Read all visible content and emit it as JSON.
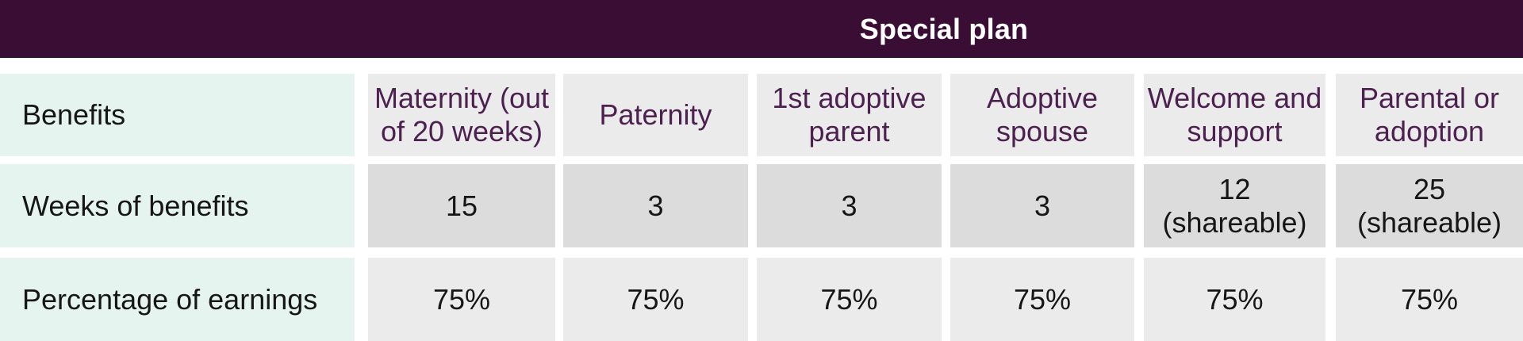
{
  "header": {
    "title": "Special plan"
  },
  "table": {
    "benefits_label": "Benefits",
    "weeks_label": "Weeks of benefits",
    "pct_label": "Percentage of earnings",
    "columns": [
      "Maternity (out\nof 20 weeks)",
      "Paternity",
      "1st adoptive\nparent",
      "Adoptive\nspouse",
      "Welcome and\nsupport",
      "Parental or\nadoption"
    ],
    "weeks": [
      "15",
      "3",
      "3",
      "3",
      "12\n(shareable)",
      "25\n(shareable)"
    ],
    "percentages": [
      "75%",
      "75%",
      "75%",
      "75%",
      "75%",
      "75%"
    ]
  },
  "chart_data": {
    "type": "table",
    "title": "Special plan",
    "row_headers": [
      "Benefits",
      "Weeks of benefits",
      "Percentage of earnings"
    ],
    "columns": [
      "Maternity (out of 20 weeks)",
      "Paternity",
      "1st adoptive parent",
      "Adoptive spouse",
      "Welcome and support",
      "Parental or adoption"
    ],
    "rows": [
      {
        "label": "Weeks of benefits",
        "values": [
          "15",
          "3",
          "3",
          "3",
          "12 (shareable)",
          "25 (shareable)"
        ]
      },
      {
        "label": "Percentage of earnings",
        "values": [
          "75%",
          "75%",
          "75%",
          "75%",
          "75%",
          "75%"
        ]
      }
    ]
  },
  "colors": {
    "header_bg": "#3A0D35",
    "header_text": "#FFFFFF",
    "label_bg": "#E6F4F0",
    "col_header_text": "#4C2150",
    "row1_bg": "#ECEBEB",
    "row2_bg": "#DCDCDC",
    "row3_bg": "#EBEBEB",
    "value_text": "#161616"
  }
}
